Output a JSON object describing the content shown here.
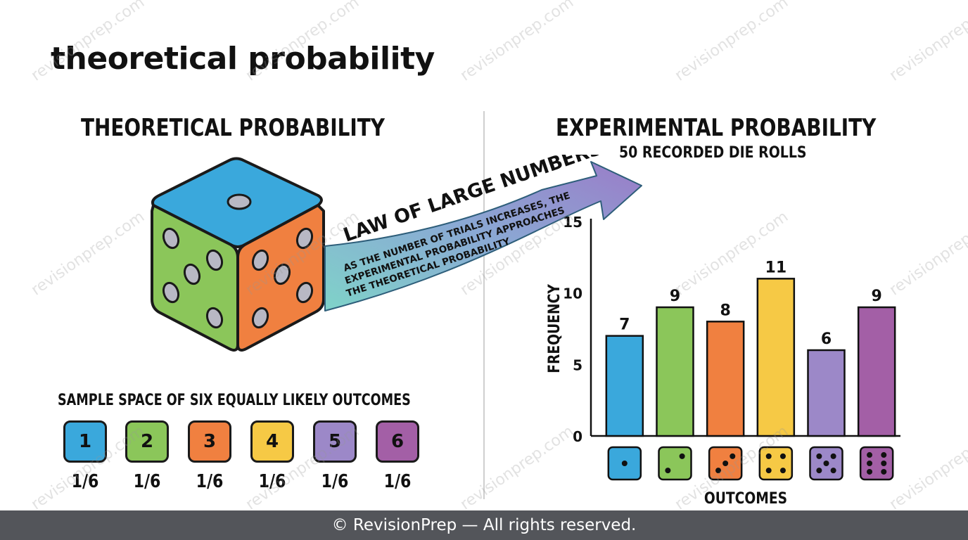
{
  "page_title": "theoretical probability",
  "left_section": {
    "title": "THEORETICAL PROBABILITY",
    "sample_space_title": "SAMPLE SPACE OF SIX EQUALLY LIKELY OUTCOMES",
    "outcomes": [
      {
        "label": "1",
        "probability": "1/6",
        "color": "#3aa8dc"
      },
      {
        "label": "2",
        "probability": "1/6",
        "color": "#8bc65a"
      },
      {
        "label": "3",
        "probability": "1/6",
        "color": "#f08040"
      },
      {
        "label": "4",
        "probability": "1/6",
        "color": "#f6c945"
      },
      {
        "label": "5",
        "probability": "1/6",
        "color": "#9c88c8"
      },
      {
        "label": "6",
        "probability": "1/6",
        "color": "#a35fa6"
      }
    ]
  },
  "arrow": {
    "label": "LAW OF LARGE NUMBERS",
    "description_lines": [
      "AS THE NUMBER OF TRIALS INCREASES, THE",
      "EXPERIMENTAL PROBABILITY APPROACHES",
      "THE THEORETICAL PROBABILITY"
    ]
  },
  "right_section": {
    "title": "EXPERIMENTAL PROBABILITY",
    "subtitle": "50 RECORDED DIE ROLLS"
  },
  "chart_data": {
    "type": "bar",
    "categories": [
      "1",
      "2",
      "3",
      "4",
      "5",
      "6"
    ],
    "values": [
      7,
      9,
      8,
      11,
      6,
      9
    ],
    "colors": [
      "#3aa8dc",
      "#8bc65a",
      "#f08040",
      "#f6c945",
      "#9c88c8",
      "#a35fa6"
    ],
    "xlabel": "OUTCOMES",
    "ylabel": "FREQUENCY",
    "ylim": [
      0,
      15
    ],
    "yticks": [
      "0",
      "5",
      "10",
      "15"
    ],
    "x_tick_style": "die faces",
    "grid": false
  },
  "watermark_text": "revisionprep.com",
  "footer": "© RevisionPrep — All rights reserved."
}
